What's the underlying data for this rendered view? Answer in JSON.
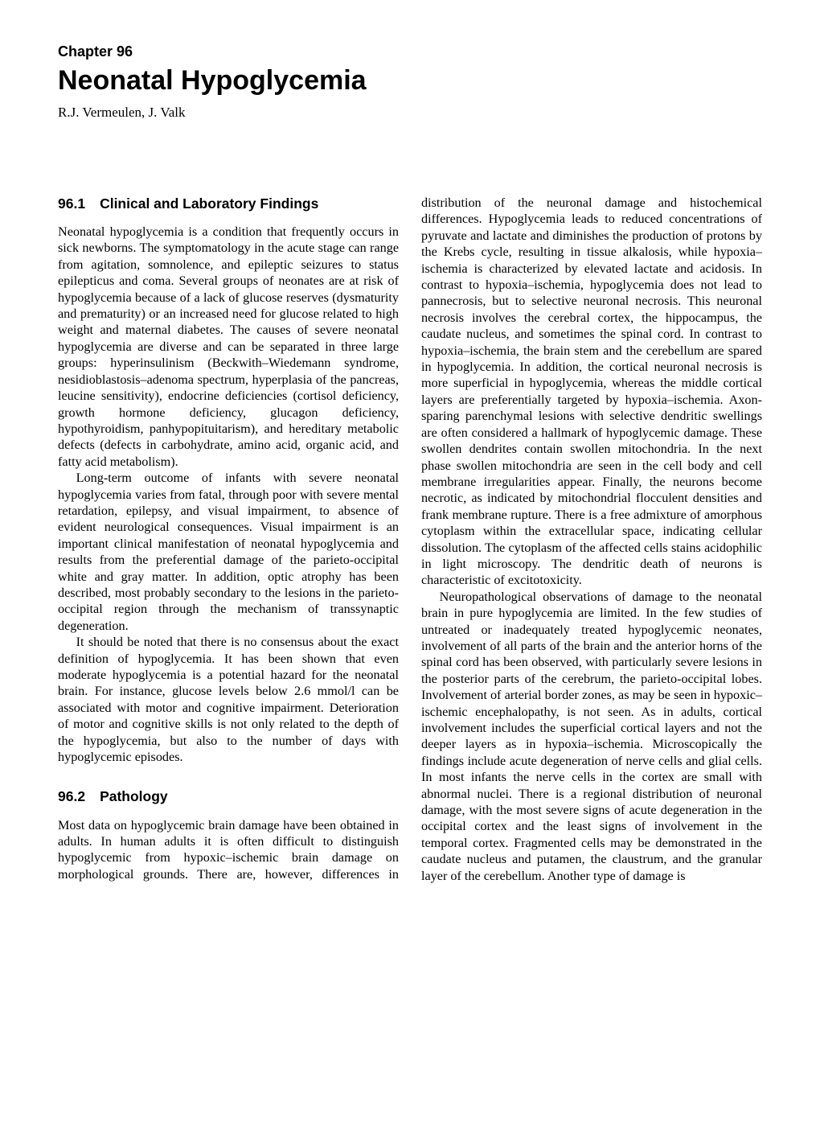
{
  "chapter": {
    "label": "Chapter 96",
    "title": "Neonatal Hypoglycemia",
    "authors": "R.J. Vermeulen, J. Valk"
  },
  "sections": [
    {
      "number": "96.1",
      "title": "Clinical and Laboratory Findings",
      "paragraphs": [
        "Neonatal hypoglycemia is a condition that frequently occurs in sick newborns. The symptomatology in the acute stage can range from agitation, somnolence, and epileptic seizures to status epilepticus and coma. Several groups of neonates are at risk of hypoglycemia because of a lack of glucose reserves (dysmaturity and prematurity) or an increased need for glucose related to high weight and maternal diabetes. The causes of severe neonatal hypoglycemia are diverse and can be separated in three large groups: hyperinsulinism (Beckwith–Wiedemann syndrome, nesidioblastosis–adenoma spectrum, hyperplasia of the pancreas, leucine sensitivity), endocrine deficiencies (cortisol deficiency, growth hormone deficiency, glucagon deficiency, hypothyroidism, panhypopituitarism), and hereditary metabolic defects (defects in carbohydrate, amino acid, organic acid, and fatty acid metabolism).",
        "Long-term outcome of infants with severe neonatal hypoglycemia varies from fatal, through poor with severe mental retardation, epilepsy, and visual impairment, to absence of evident neurological consequences. Visual impairment is an important clinical manifestation of neonatal hypoglycemia and results from the preferential damage of the parieto-occipital white and gray matter. In addition, optic atrophy has been described, most probably secondary to the lesions in the parieto-occipital region through the mechanism of transsynaptic degeneration.",
        "It should be noted that there is no consensus about the exact definition of hypoglycemia. It has been shown that even moderate hypoglycemia is a potential hazard for the neonatal brain. For instance, glucose levels below 2.6 mmol/l can be associated with motor and cognitive impairment. Deterioration of motor and cognitive skills is not only related to the depth of the hypoglycemia, but also to the number of days with hypoglycemic episodes."
      ]
    },
    {
      "number": "96.2",
      "title": "Pathology",
      "paragraphs": [
        "Most data on hypoglycemic brain damage have been obtained in adults. In human adults it is often difficult to distinguish hypoglycemic from hypoxic–ischemic brain damage on morphological grounds. There are, however, differences in distribution of the neuronal damage and histochemical differences. Hypoglycemia leads to reduced concentrations of pyruvate and lactate and diminishes the production of protons by the Krebs cycle, resulting in tissue alkalosis, while hypoxia–ischemia is characterized by elevated lactate and acidosis. In contrast to hypoxia–ischemia, hypoglycemia does not lead to pannecrosis, but to selective neuronal necrosis. This neuronal necrosis involves the cerebral cortex, the hippocampus, the caudate nucleus, and sometimes the spinal cord. In contrast to hypoxia–ischemia, the brain stem and the cerebellum are spared in hypoglycemia. In addition, the cortical neuronal necrosis is more superficial in hypoglycemia, whereas the middle cortical layers are preferentially targeted by hypoxia–ischemia. Axon-sparing parenchymal lesions with selective dendritic swellings are often considered a hallmark of hypoglycemic damage. These swollen dendrites contain swollen mitochondria. In the next phase swollen mitochondria are seen in the cell body and cell membrane irregularities appear. Finally, the neurons become necrotic, as indicated by mitochondrial flocculent densities and frank membrane rupture. There is a free admixture of amorphous cytoplasm within the extracellular space, indicating cellular dissolution. The cytoplasm of the affected cells stains acidophilic in light microscopy. The dendritic death of neurons is characteristic of excitotoxicity.",
        "Neuropathological observations of damage to the neonatal brain in pure hypoglycemia are limited. In the few studies of untreated or inadequately treated hypoglycemic neonates, involvement of all parts of the brain and the anterior horns of the spinal cord has been observed, with particularly severe lesions in the posterior parts of the cerebrum, the parieto-occipital lobes. Involvement of arterial border zones, as may be seen in hypoxic–ischemic encephalopathy, is not seen. As in adults, cortical involvement includes the superficial cortical layers and not the deeper layers as in hypoxia–ischemia. Microscopically the findings include acute degeneration of nerve cells and glial cells. In most infants the nerve cells in the cortex are small with abnormal nuclei. There is a regional distribution of neuronal damage, with the most severe signs of acute degeneration in the occipital cortex and the least signs of involvement in the temporal cortex. Fragmented cells may be demonstrated in the caudate nucleus and putamen, the claustrum, and the granular layer of the cerebellum. Another type of damage is"
      ]
    }
  ]
}
